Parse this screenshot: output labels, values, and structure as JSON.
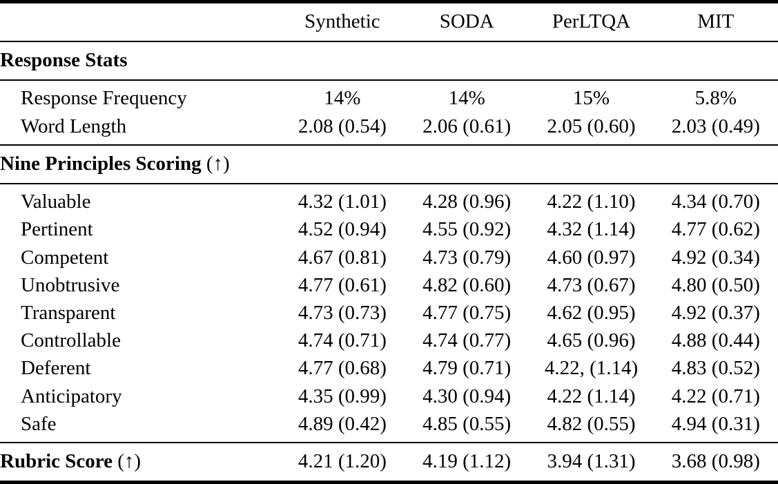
{
  "table": {
    "columns": [
      "",
      "Synthetic",
      "SODA",
      "PerLTQA",
      "MIT"
    ],
    "sections": [
      {
        "header": "Response Stats",
        "header_suffix": "",
        "rows": [
          {
            "label": "Response Frequency",
            "values": [
              "14%",
              "14%",
              "15%",
              "5.8%"
            ]
          },
          {
            "label": "Word Length",
            "values": [
              "2.08 (0.54)",
              "2.06 (0.61)",
              "2.05 (0.60)",
              "2.03 (0.49)"
            ]
          }
        ]
      },
      {
        "header": "Nine Principles Scoring",
        "header_suffix": "(↑)",
        "rows": [
          {
            "label": "Valuable",
            "values": [
              "4.32 (1.01)",
              "4.28 (0.96)",
              "4.22 (1.10)",
              "4.34 (0.70)"
            ]
          },
          {
            "label": "Pertinent",
            "values": [
              "4.52 (0.94)",
              "4.55 (0.92)",
              "4.32 (1.14)",
              "4.77 (0.62)"
            ]
          },
          {
            "label": "Competent",
            "values": [
              "4.67 (0.81)",
              "4.73 (0.79)",
              "4.60 (0.97)",
              "4.92 (0.34)"
            ]
          },
          {
            "label": "Unobtrusive",
            "values": [
              "4.77 (0.61)",
              "4.82 (0.60)",
              "4.73 (0.67)",
              "4.80 (0.50)"
            ]
          },
          {
            "label": "Transparent",
            "values": [
              "4.73 (0.73)",
              "4.77 (0.75)",
              "4.62 (0.95)",
              "4.92 (0.37)"
            ]
          },
          {
            "label": "Controllable",
            "values": [
              "4.74 (0.71)",
              "4.74 (0.77)",
              "4.65 (0.96)",
              "4.88 (0.44)"
            ]
          },
          {
            "label": "Deferent",
            "values": [
              "4.77 (0.68)",
              "4.79 (0.71)",
              "4.22, (1.14)",
              "4.83 (0.52)"
            ]
          },
          {
            "label": "Anticipatory",
            "values": [
              "4.35 (0.99)",
              "4.30 (0.94)",
              "4.22 (1.14)",
              "4.22 (0.71)"
            ]
          },
          {
            "label": "Safe",
            "values": [
              "4.89 (0.42)",
              "4.85 (0.55)",
              "4.82 (0.55)",
              "4.94 (0.31)"
            ]
          }
        ]
      }
    ],
    "footer": {
      "label": "Rubric Score",
      "suffix": "(↑)",
      "values": [
        "4.21 (1.20)",
        "4.19 (1.12)",
        "3.94 (1.31)",
        "3.68 (0.98)"
      ]
    }
  }
}
